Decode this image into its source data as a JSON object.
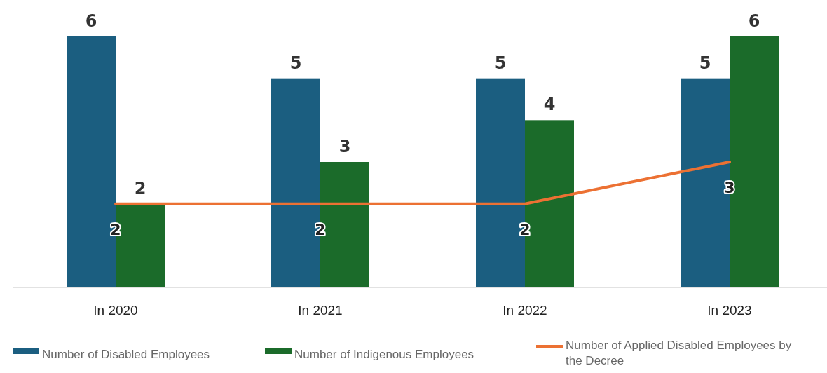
{
  "chart_data": {
    "type": "bar",
    "categories": [
      "In 2020",
      "In 2021",
      "In 2022",
      "In 2023"
    ],
    "series": [
      {
        "name": "Number of Disabled Employees",
        "color": "#1b5e80",
        "values": [
          6,
          5,
          5,
          5
        ]
      },
      {
        "name": "Number of Indigenous Employees",
        "color": "#1b6b2a",
        "values": [
          2,
          3,
          4,
          6
        ]
      },
      {
        "name": "Number of Applied Disabled Employees by the Decree",
        "color": "#ec7133",
        "type": "line",
        "values": [
          2,
          2,
          2,
          3
        ]
      }
    ],
    "data_labels": true,
    "legend": "bottom"
  }
}
